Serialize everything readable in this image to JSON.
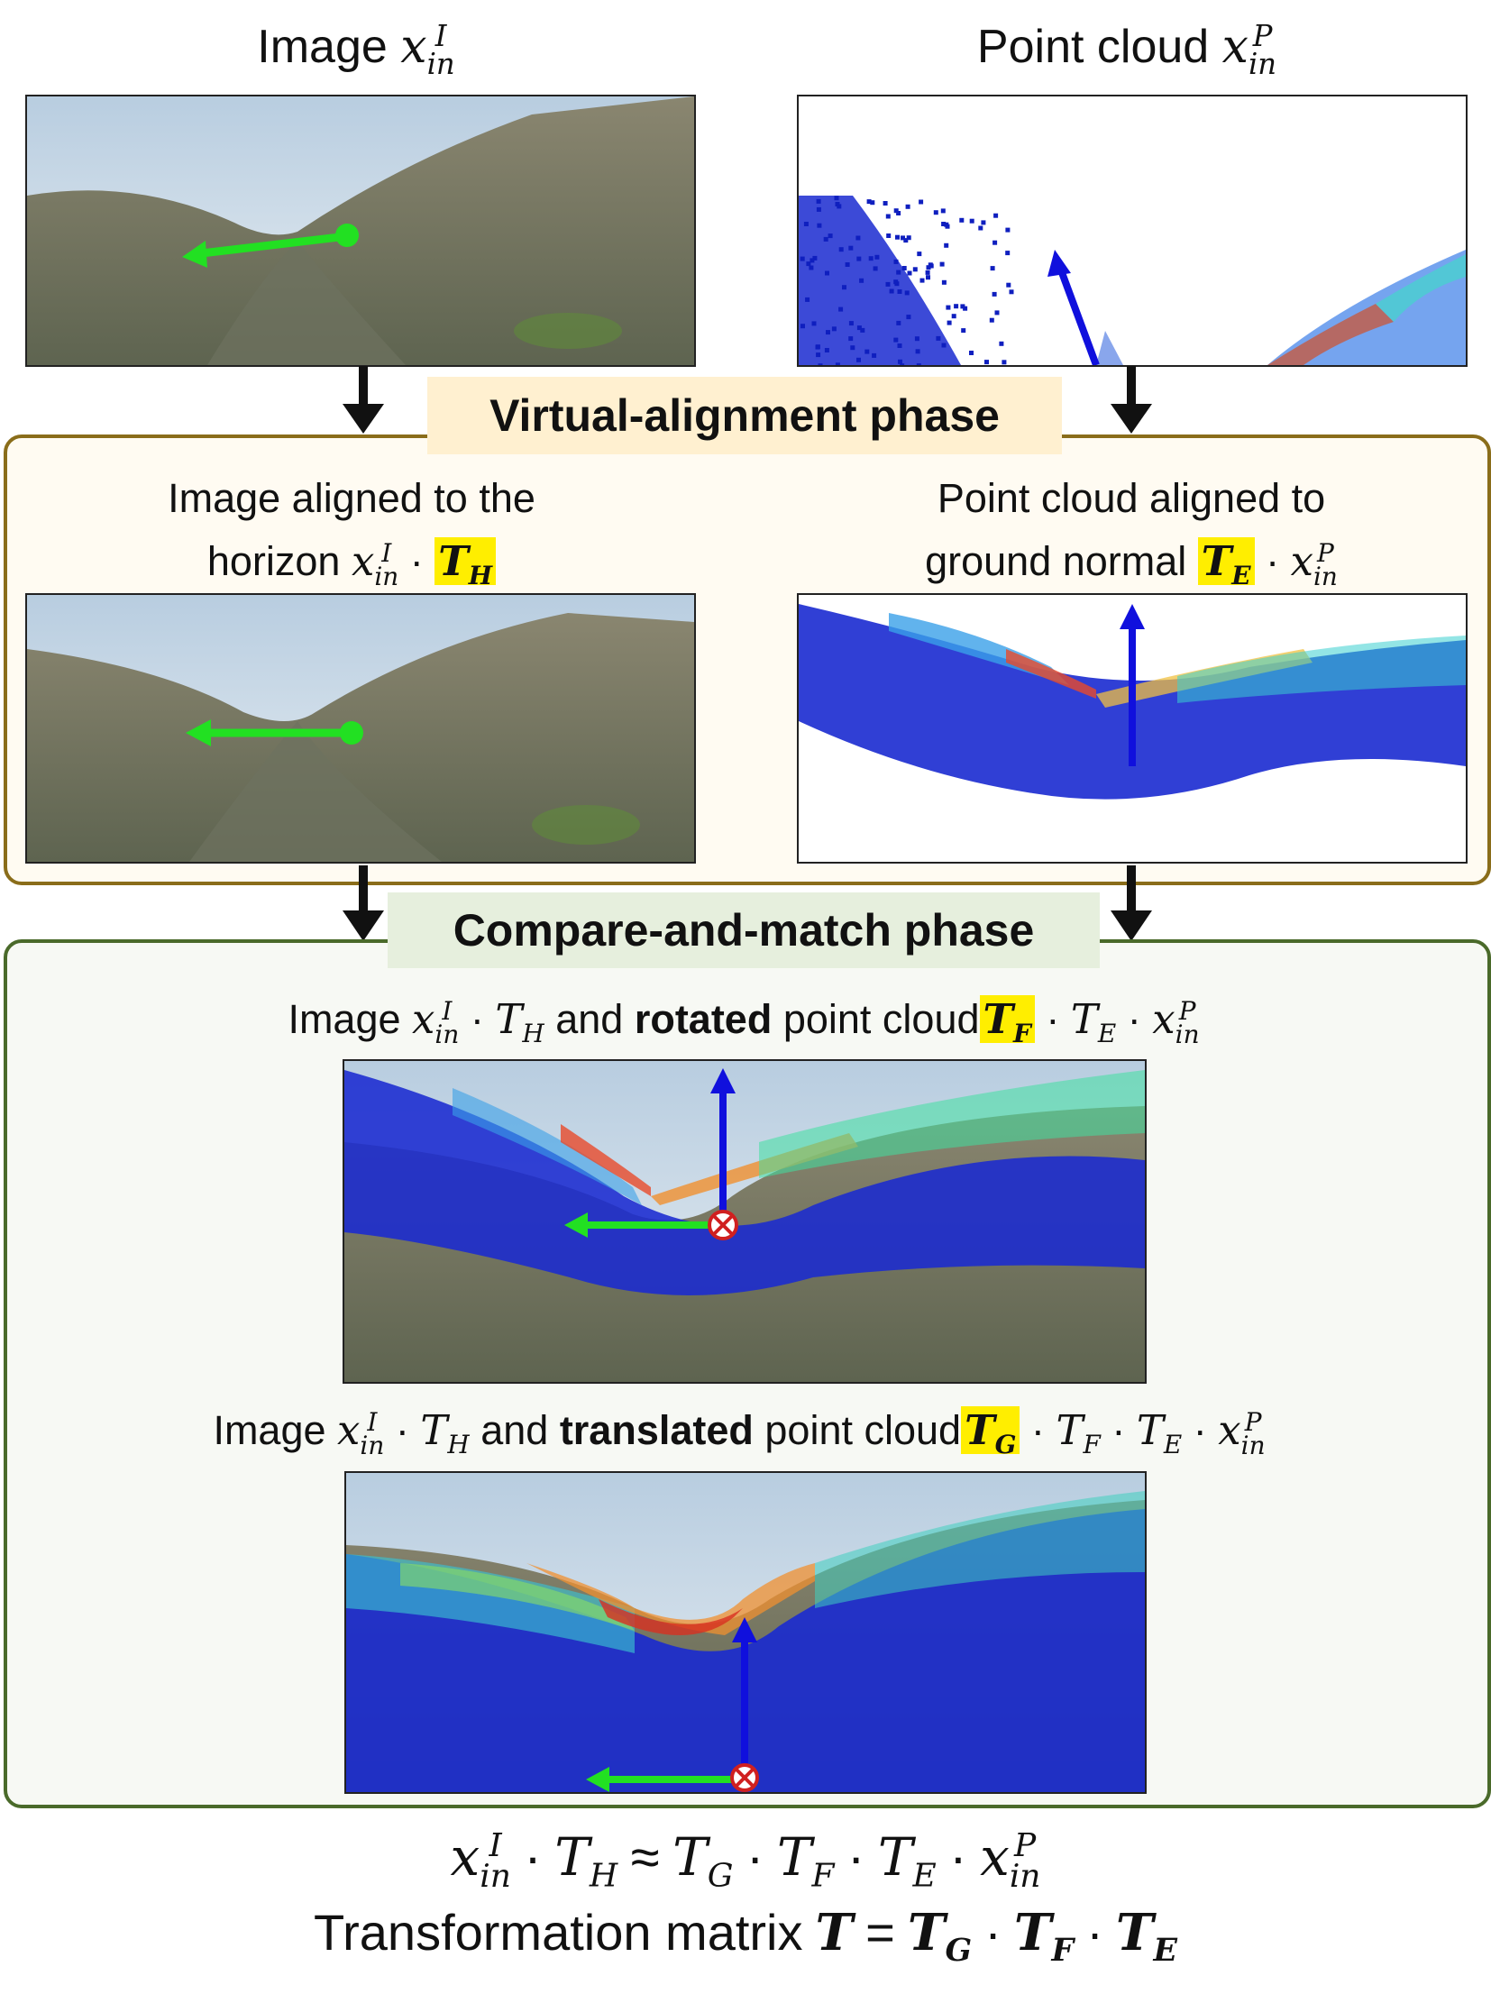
{
  "top": {
    "image_label": "Image",
    "pointcloud_label": "Point cloud",
    "x_sym": "x",
    "in_sub": "in",
    "I_sup": "I",
    "P_sup": "P"
  },
  "phase1": {
    "title": "Virtual-alignment phase",
    "left_line1": "Image aligned to the",
    "left_line2": "horizon",
    "right_line1": "Point cloud aligned to",
    "right_line2": "ground normal",
    "TH": "T",
    "TH_sub": "H",
    "TE": "T",
    "TE_sub": "E",
    "dot": "·"
  },
  "phase2": {
    "title": "Compare-and-match phase",
    "cap1_image": "Image",
    "cap1_and": "and",
    "cap1_bold": "rotated",
    "cap1_rest": "point cloud",
    "TF": "T",
    "TF_sub": "F",
    "cap2_image": "Image",
    "cap2_and": "and",
    "cap2_bold": "translated",
    "cap2_rest": "point cloud",
    "TG": "T",
    "TG_sub": "G",
    "sub_H": "H",
    "sub_E": "E",
    "sub_F": "F"
  },
  "bottom": {
    "approx": "≈",
    "eq": "=",
    "matrix_label": "Transformation matrix",
    "T": "T"
  },
  "colors": {
    "phase1_border": "#8a6d1a",
    "phase1_fill": "#fffbf2",
    "phase1_title_bg": "#fff0d0",
    "phase2_border": "#4a6a2a",
    "phase2_fill": "#f7f9f4",
    "phase2_title_bg": "#e6efdd",
    "highlight": "#ffee00",
    "green_arrow": "#22e022",
    "blue_arrow": "#1010dd"
  },
  "icons": [
    "down-arrow-icon",
    "green-direction-arrow-icon",
    "blue-normal-arrow-icon",
    "origin-marker-icon"
  ]
}
